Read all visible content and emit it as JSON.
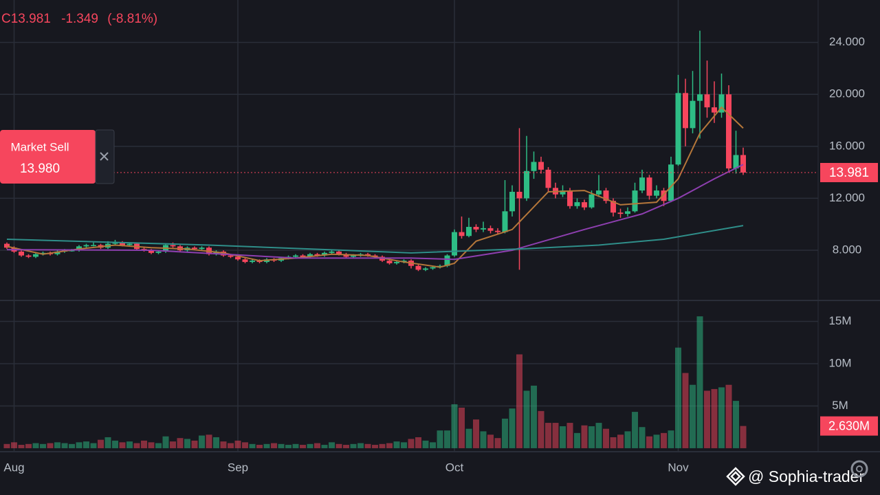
{
  "header": {
    "close": "C13.981",
    "change": "-1.349",
    "change_pct": "(-8.81%)"
  },
  "order_button": {
    "label": "Market Sell",
    "price": "13.980"
  },
  "watermark": "@ Sophia-trader",
  "chart_data": {
    "type": "candlestick",
    "up_color": "#2ebd85",
    "down_color": "#f6465d",
    "xticks": [
      {
        "value": 1,
        "label": "Aug"
      },
      {
        "value": 32,
        "label": "Sep"
      },
      {
        "value": 62,
        "label": "Oct"
      },
      {
        "value": 93,
        "label": "Nov"
      }
    ],
    "ylim": [
      4.14,
      27.26
    ],
    "yticks": [
      {
        "value": 8,
        "label": "8.000"
      },
      {
        "value": 12,
        "label": "12.000"
      },
      {
        "value": 16,
        "label": "16.000"
      },
      {
        "value": 20,
        "label": "20.000"
      },
      {
        "value": 24,
        "label": "24.000"
      }
    ],
    "grid": true,
    "open": [
      8.5,
      8.2,
      7.9,
      7.6,
      7.5,
      7.7,
      7.8,
      7.7,
      7.9,
      8.0,
      8.0,
      8.3,
      8.4,
      8.4,
      8.2,
      8.5,
      8.6,
      8.4,
      8.5,
      8.1,
      8.0,
      7.8,
      7.9,
      8.4,
      8.3,
      8.0,
      8.2,
      8.1,
      8.2,
      7.7,
      7.9,
      7.6,
      7.5,
      7.3,
      7.1,
      7.2,
      7.1,
      7.3,
      7.2,
      7.4,
      7.5,
      7.6,
      7.5,
      7.7,
      7.6,
      7.8,
      7.9,
      7.7,
      7.5,
      7.6,
      7.7,
      7.6,
      7.5,
      7.2,
      7.0,
      7.1,
      7.2,
      6.8,
      6.5,
      6.6,
      6.7,
      6.8,
      7.6,
      9.4,
      9.1,
      9.8,
      9.6,
      9.7,
      9.5,
      9.4,
      11.0,
      12.5,
      12.0,
      14.1,
      14.8,
      14.2,
      12.8,
      12.3,
      12.6,
      11.4,
      11.7,
      11.3,
      12.3,
      12.6,
      11.8,
      10.9,
      10.8,
      11.0,
      12.6,
      13.6,
      12.2,
      12.6,
      11.8,
      14.6,
      20.1,
      17.4,
      19.5,
      20.0,
      19.0,
      18.6,
      20.0,
      14.3,
      15.33
    ],
    "high": [
      8.6,
      8.3,
      8.0,
      7.7,
      7.8,
      7.9,
      7.9,
      8.0,
      8.1,
      8.1,
      8.4,
      8.5,
      8.6,
      8.5,
      8.7,
      8.8,
      8.7,
      8.6,
      8.6,
      8.2,
      8.1,
      8.0,
      8.5,
      8.6,
      8.4,
      8.3,
      8.3,
      8.3,
      8.3,
      8.0,
      8.0,
      7.7,
      7.6,
      7.4,
      7.3,
      7.3,
      7.4,
      7.4,
      7.5,
      7.6,
      7.7,
      7.7,
      7.8,
      7.8,
      7.9,
      8.0,
      8.0,
      7.8,
      7.7,
      7.8,
      7.8,
      7.7,
      7.6,
      7.3,
      7.2,
      7.3,
      7.3,
      6.9,
      6.7,
      6.8,
      6.9,
      7.7,
      9.6,
      10.6,
      10.5,
      10.0,
      10.2,
      9.9,
      9.7,
      13.4,
      13.0,
      17.4,
      16.8,
      15.6,
      15.2,
      14.4,
      13.2,
      13.0,
      12.8,
      12.0,
      11.9,
      12.6,
      13.8,
      12.8,
      12.0,
      11.2,
      11.3,
      13.2,
      14.2,
      13.8,
      13.0,
      12.8,
      15.2,
      21.5,
      21.2,
      21.8,
      24.9,
      22.6,
      21.0,
      21.6,
      20.7,
      17.2,
      15.9
    ],
    "low": [
      8.1,
      7.8,
      7.5,
      7.4,
      7.4,
      7.6,
      7.6,
      7.6,
      7.8,
      7.9,
      7.9,
      8.2,
      8.3,
      8.1,
      8.1,
      8.4,
      8.3,
      8.3,
      8.0,
      7.9,
      7.7,
      7.7,
      7.8,
      8.2,
      7.9,
      7.9,
      8.0,
      8.0,
      7.6,
      7.6,
      7.5,
      7.4,
      7.2,
      7.0,
      7.0,
      7.0,
      7.0,
      7.1,
      7.1,
      7.3,
      7.4,
      7.4,
      7.4,
      7.5,
      7.5,
      7.7,
      7.6,
      7.4,
      7.4,
      7.5,
      7.5,
      7.4,
      7.1,
      6.9,
      6.9,
      7.0,
      6.6,
      6.4,
      6.4,
      6.5,
      6.6,
      6.7,
      7.5,
      8.9,
      9.0,
      9.4,
      9.4,
      9.3,
      9.2,
      9.3,
      10.6,
      6.5,
      11.8,
      13.5,
      13.9,
      12.5,
      12.0,
      12.1,
      11.2,
      11.2,
      11.1,
      11.2,
      12.1,
      11.6,
      10.6,
      10.5,
      10.6,
      10.9,
      12.4,
      11.9,
      12.0,
      11.4,
      11.7,
      14.5,
      16.0,
      17.0,
      16.6,
      18.2,
      17.8,
      18.2,
      14.1,
      13.9,
      13.8
    ],
    "close": [
      8.2,
      7.9,
      7.6,
      7.5,
      7.7,
      7.8,
      7.7,
      7.9,
      8.0,
      8.0,
      8.3,
      8.4,
      8.4,
      8.2,
      8.5,
      8.6,
      8.4,
      8.5,
      8.1,
      8.0,
      7.8,
      7.9,
      8.4,
      8.3,
      8.0,
      8.2,
      8.1,
      8.2,
      7.7,
      7.9,
      7.6,
      7.5,
      7.3,
      7.1,
      7.2,
      7.1,
      7.3,
      7.2,
      7.4,
      7.5,
      7.6,
      7.5,
      7.7,
      7.6,
      7.8,
      7.9,
      7.7,
      7.5,
      7.6,
      7.7,
      7.6,
      7.5,
      7.2,
      7.0,
      7.1,
      7.2,
      6.8,
      6.5,
      6.6,
      6.7,
      6.8,
      7.6,
      9.4,
      9.1,
      9.8,
      9.6,
      9.7,
      9.5,
      9.4,
      11.0,
      12.5,
      12.0,
      14.1,
      14.8,
      14.2,
      12.8,
      12.3,
      12.6,
      11.4,
      11.7,
      11.3,
      12.3,
      12.6,
      11.8,
      10.9,
      10.8,
      11.0,
      12.6,
      13.6,
      12.2,
      12.6,
      11.8,
      14.6,
      20.1,
      17.4,
      19.5,
      20.0,
      19.0,
      18.6,
      20.0,
      14.3,
      15.33,
      13.981
    ],
    "last_price": 13.981,
    "last_price_label": "13.981",
    "overlays": [
      {
        "color": "#b5773a",
        "x": [
          0,
          5,
          10,
          15,
          20,
          25,
          30,
          35,
          40,
          45,
          50,
          55,
          60,
          62,
          65,
          70,
          75,
          80,
          85,
          90,
          93,
          96,
          99,
          102
        ],
        "values": [
          8.3,
          7.7,
          8.1,
          8.4,
          8.2,
          8.1,
          7.8,
          7.2,
          7.4,
          7.7,
          7.6,
          7.1,
          6.7,
          7.0,
          8.7,
          9.6,
          12.5,
          12.6,
          11.5,
          11.7,
          13.5,
          17.0,
          19.0,
          17.4
        ]
      },
      {
        "color": "#8e3fb0",
        "x": [
          0,
          20,
          40,
          56,
          62,
          70,
          80,
          88,
          93,
          98,
          102
        ],
        "values": [
          8.05,
          8.0,
          7.4,
          7.4,
          7.3,
          8.0,
          9.6,
          10.8,
          12.0,
          13.5,
          14.6
        ]
      },
      {
        "color": "#2f8f8a",
        "x": [
          0,
          28,
          56,
          71,
          82,
          91,
          102
        ],
        "values": [
          8.85,
          8.4,
          7.8,
          8.1,
          8.4,
          8.85,
          9.9
        ]
      }
    ],
    "volume": [
      500000,
      700000,
      400000,
      500000,
      600000,
      500000,
      600000,
      700000,
      600000,
      500000,
      700000,
      800000,
      600000,
      1000000,
      1300000,
      900000,
      700000,
      800000,
      600000,
      900000,
      700000,
      600000,
      1400000,
      800000,
      1200000,
      1100000,
      900000,
      1500000,
      1600000,
      1300000,
      800000,
      600000,
      900000,
      700000,
      500000,
      400000,
      500000,
      600000,
      500000,
      400000,
      500000,
      400000,
      500000,
      600000,
      400000,
      700000,
      500000,
      400000,
      500000,
      600000,
      500000,
      400000,
      500000,
      600000,
      800000,
      700000,
      1100000,
      1300000,
      900000,
      700000,
      2100000,
      2100000,
      5200000,
      4800000,
      2300000,
      3400000,
      2000000,
      1600000,
      1200000,
      3500000,
      4700000,
      11100000,
      6800000,
      7400000,
      4400000,
      3000000,
      3000000,
      2600000,
      3000000,
      1800000,
      2700000,
      2600000,
      3000000,
      2300000,
      1300000,
      1600000,
      2000000,
      4300000,
      2500000,
      1400000,
      1600000,
      1800000,
      2100000,
      11900000,
      8900000,
      7500000,
      15600000,
      6800000,
      7000000,
      7200000,
      7500000,
      5600000,
      2630000
    ],
    "volume_label": "2.630M",
    "vlim": [
      -410000,
      17480000
    ],
    "vticks": [
      {
        "value": 5000000,
        "label": "5M"
      },
      {
        "value": 10000000,
        "label": "10M"
      },
      {
        "value": 15000000,
        "label": "15M"
      }
    ]
  }
}
